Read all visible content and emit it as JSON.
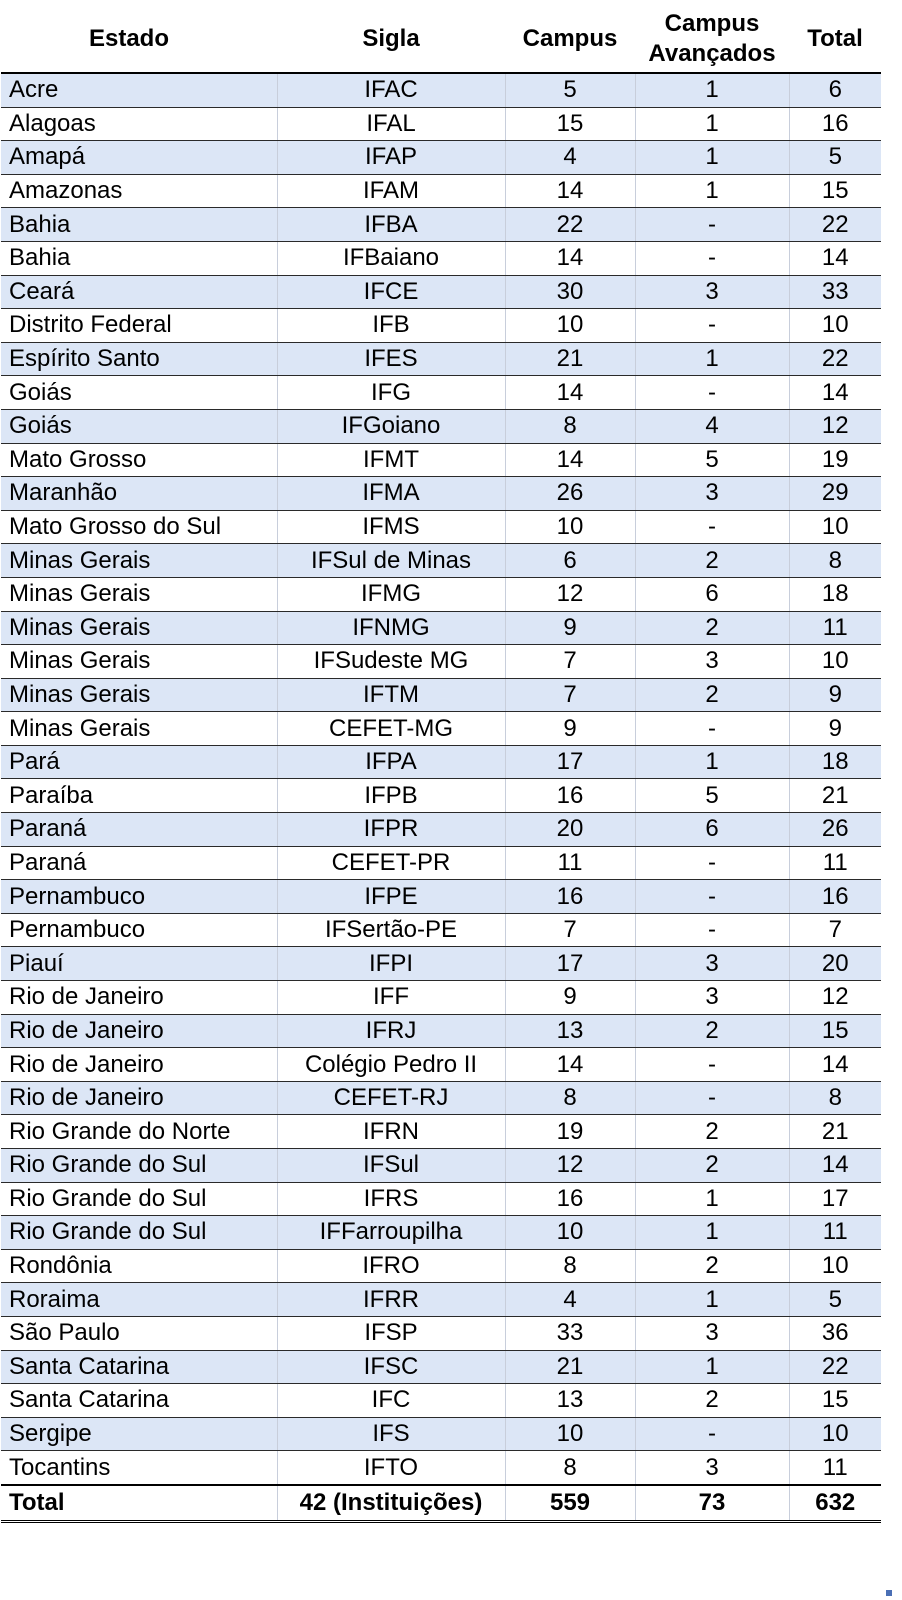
{
  "table": {
    "headers": {
      "estado": "Estado",
      "sigla": "Sigla",
      "campus": "Campus",
      "campus_avancados_line1": "Campus",
      "campus_avancados_line2": "Avançados",
      "total": "Total"
    },
    "rows": [
      [
        "Acre",
        "IFAC",
        "5",
        "1",
        "6"
      ],
      [
        "Alagoas",
        "IFAL",
        "15",
        "1",
        "16"
      ],
      [
        "Amapá",
        "IFAP",
        "4",
        "1",
        "5"
      ],
      [
        "Amazonas",
        "IFAM",
        "14",
        "1",
        "15"
      ],
      [
        "Bahia",
        "IFBA",
        "22",
        "-",
        "22"
      ],
      [
        "Bahia",
        "IFBaiano",
        "14",
        "-",
        "14"
      ],
      [
        "Ceará",
        "IFCE",
        "30",
        "3",
        "33"
      ],
      [
        "Distrito Federal",
        "IFB",
        "10",
        "-",
        "10"
      ],
      [
        "Espírito Santo",
        "IFES",
        "21",
        "1",
        "22"
      ],
      [
        "Goiás",
        "IFG",
        "14",
        "-",
        "14"
      ],
      [
        "Goiás",
        "IFGoiano",
        "8",
        "4",
        "12"
      ],
      [
        "Mato Grosso",
        "IFMT",
        "14",
        "5",
        "19"
      ],
      [
        "Maranhão",
        "IFMA",
        "26",
        "3",
        "29"
      ],
      [
        "Mato Grosso do Sul",
        "IFMS",
        "10",
        "-",
        "10"
      ],
      [
        "Minas Gerais",
        "IFSul de Minas",
        "6",
        "2",
        "8"
      ],
      [
        "Minas Gerais",
        "IFMG",
        "12",
        "6",
        "18"
      ],
      [
        "Minas Gerais",
        "IFNMG",
        "9",
        "2",
        "11"
      ],
      [
        "Minas Gerais",
        "IFSudeste MG",
        "7",
        "3",
        "10"
      ],
      [
        "Minas Gerais",
        "IFTM",
        "7",
        "2",
        "9"
      ],
      [
        "Minas Gerais",
        "CEFET-MG",
        "9",
        "-",
        "9"
      ],
      [
        "Pará",
        "IFPA",
        "17",
        "1",
        "18"
      ],
      [
        "Paraíba",
        "IFPB",
        "16",
        "5",
        "21"
      ],
      [
        "Paraná",
        "IFPR",
        "20",
        "6",
        "26"
      ],
      [
        "Paraná",
        "CEFET-PR",
        "11",
        "-",
        "11"
      ],
      [
        "Pernambuco",
        "IFPE",
        "16",
        "-",
        "16"
      ],
      [
        "Pernambuco",
        "IFSertão-PE",
        "7",
        "-",
        "7"
      ],
      [
        "Piauí",
        "IFPI",
        "17",
        "3",
        "20"
      ],
      [
        "Rio de Janeiro",
        "IFF",
        "9",
        "3",
        "12"
      ],
      [
        "Rio de Janeiro",
        "IFRJ",
        "13",
        "2",
        "15"
      ],
      [
        "Rio de Janeiro",
        "Colégio Pedro II",
        "14",
        "-",
        "14"
      ],
      [
        "Rio de Janeiro",
        "CEFET-RJ",
        "8",
        "-",
        "8"
      ],
      [
        "Rio Grande do Norte",
        "IFRN",
        "19",
        "2",
        "21"
      ],
      [
        "Rio Grande do Sul",
        "IFSul",
        "12",
        "2",
        "14"
      ],
      [
        "Rio Grande do Sul",
        "IFRS",
        "16",
        "1",
        "17"
      ],
      [
        "Rio Grande do Sul",
        "IFFarroupilha",
        "10",
        "1",
        "11"
      ],
      [
        "Rondônia",
        "IFRO",
        "8",
        "2",
        "10"
      ],
      [
        "Roraima",
        "IFRR",
        "4",
        "1",
        "5"
      ],
      [
        "São Paulo",
        "IFSP",
        "33",
        "3",
        "36"
      ],
      [
        "Santa Catarina",
        "IFSC",
        "21",
        "1",
        "22"
      ],
      [
        "Santa Catarina",
        "IFC",
        "13",
        "2",
        "15"
      ],
      [
        "Sergipe",
        "IFS",
        "10",
        "-",
        "10"
      ],
      [
        "Tocantins",
        "IFTO",
        "8",
        "3",
        "11"
      ]
    ],
    "footer": [
      "Total",
      "42 (Instituições)",
      "559",
      "73",
      "632"
    ]
  },
  "colors": {
    "band": "#dce6f6",
    "rule": "#000000"
  }
}
